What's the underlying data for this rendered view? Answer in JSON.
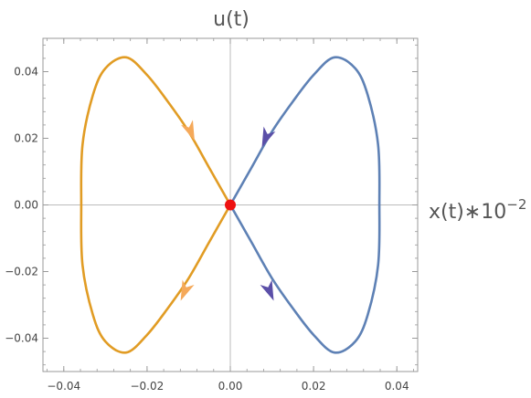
{
  "chart_data": {
    "type": "line",
    "title": "u(t)",
    "xlabel": "x(t)∗10",
    "xlabel_superscript": "−2",
    "ylabel": "",
    "xlim": [
      -0.045,
      0.045
    ],
    "ylim": [
      -0.05,
      0.05
    ],
    "x_ticks": [
      {
        "value": -0.04,
        "label": "−0.04"
      },
      {
        "value": -0.02,
        "label": "−0.02"
      },
      {
        "value": 0.0,
        "label": "0.00"
      },
      {
        "value": 0.02,
        "label": "0.02"
      },
      {
        "value": 0.04,
        "label": "0.04"
      }
    ],
    "y_ticks": [
      {
        "value": 0.04,
        "label": "0.04"
      },
      {
        "value": 0.02,
        "label": "0.02"
      },
      {
        "value": 0.0,
        "label": "0.00"
      },
      {
        "value": -0.02,
        "label": "−0.02"
      },
      {
        "value": -0.04,
        "label": "−0.04"
      }
    ],
    "grid": "axes-lines-only",
    "series": [
      {
        "color": "#5e81b5",
        "points": [
          [
            0.0,
            0.0
          ],
          [
            0.005,
            0.011
          ],
          [
            0.01,
            0.022
          ],
          [
            0.015,
            0.031
          ],
          [
            0.02,
            0.039
          ],
          [
            0.025,
            0.0443
          ],
          [
            0.03,
            0.041
          ],
          [
            0.033,
            0.033
          ],
          [
            0.0355,
            0.018
          ],
          [
            0.0358,
            0.0
          ],
          [
            0.0355,
            -0.018
          ],
          [
            0.033,
            -0.033
          ],
          [
            0.03,
            -0.041
          ],
          [
            0.025,
            -0.0443
          ],
          [
            0.02,
            -0.039
          ],
          [
            0.015,
            -0.031
          ],
          [
            0.01,
            -0.022
          ],
          [
            0.005,
            -0.011
          ],
          [
            0.0,
            0.0
          ]
        ]
      },
      {
        "color": "#e19c24",
        "points": [
          [
            0.0,
            0.0
          ],
          [
            -0.005,
            0.011
          ],
          [
            -0.01,
            0.022
          ],
          [
            -0.015,
            0.031
          ],
          [
            -0.02,
            0.039
          ],
          [
            -0.025,
            0.0443
          ],
          [
            -0.03,
            0.041
          ],
          [
            -0.033,
            0.033
          ],
          [
            -0.0355,
            0.018
          ],
          [
            -0.0358,
            0.0
          ],
          [
            -0.0355,
            -0.018
          ],
          [
            -0.033,
            -0.033
          ],
          [
            -0.03,
            -0.041
          ],
          [
            -0.025,
            -0.0443
          ],
          [
            -0.02,
            -0.039
          ],
          [
            -0.015,
            -0.031
          ],
          [
            -0.01,
            -0.022
          ],
          [
            -0.005,
            -0.011
          ],
          [
            0.0,
            0.0
          ]
        ]
      }
    ],
    "arrows": [
      {
        "x": 0.0085,
        "y": 0.02,
        "dx": -1,
        "dy": -2.4,
        "color": "#5b4fa8"
      },
      {
        "x": 0.0095,
        "y": -0.026,
        "dx": 1,
        "dy": -2.4,
        "color": "#5b4fa8"
      },
      {
        "x": -0.0095,
        "y": 0.022,
        "dx": 1,
        "dy": -2.4,
        "color": "#f5a95a"
      },
      {
        "x": -0.011,
        "y": -0.026,
        "dx": -1,
        "dy": -2.4,
        "color": "#f5a95a"
      }
    ],
    "point": {
      "x": 0.0,
      "y": 0.0,
      "color": "#ee1111"
    }
  }
}
